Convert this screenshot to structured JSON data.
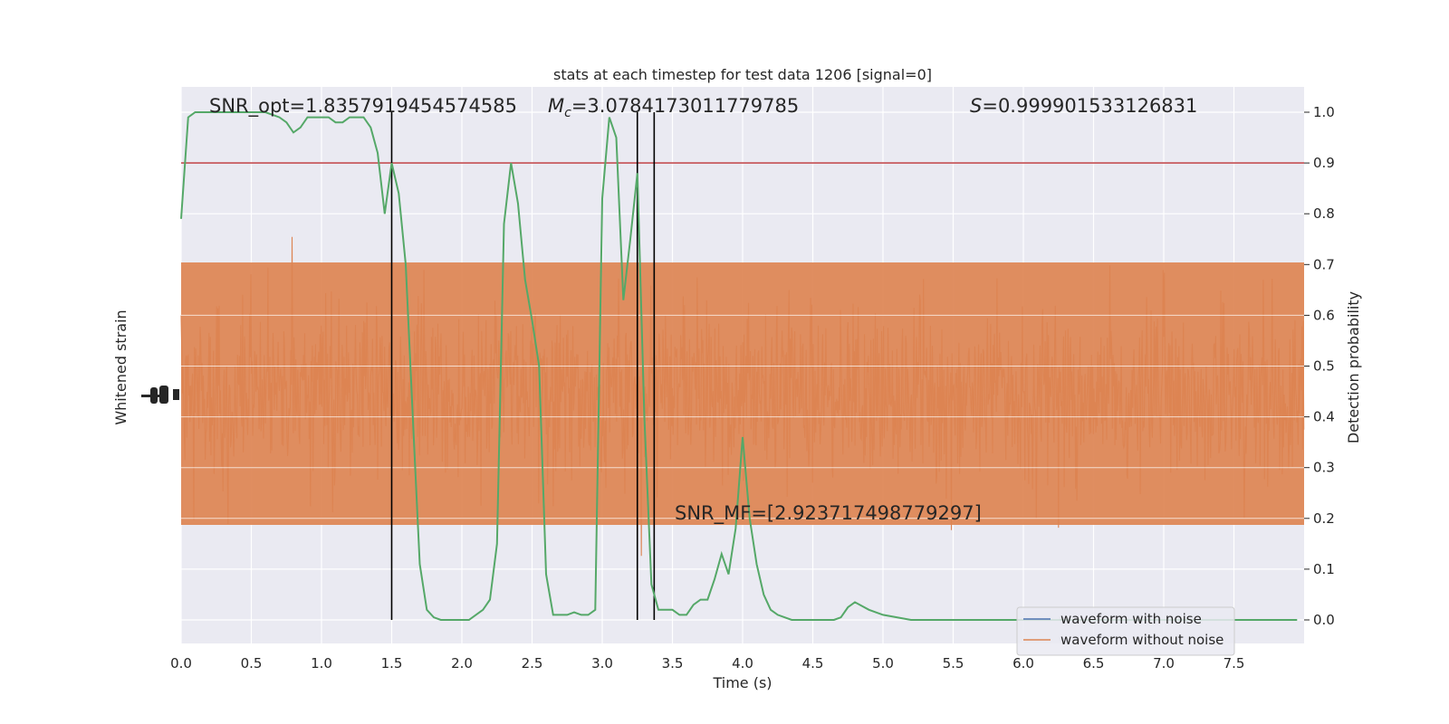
{
  "chart_data": {
    "type": "line",
    "title": "stats at each timestep for test data 1206 [signal=0]",
    "xlabel": "Time (s)",
    "ylabel_left": "Whitened strain",
    "ylabel_right": "Detection probability",
    "xlim": [
      0,
      8
    ],
    "ylim_right": [
      -0.05,
      1.05
    ],
    "x_ticks": [
      "0.0",
      "0.5",
      "1.0",
      "1.5",
      "2.0",
      "2.5",
      "3.0",
      "3.5",
      "4.0",
      "4.5",
      "5.0",
      "5.5",
      "6.0",
      "6.5",
      "7.0",
      "7.5"
    ],
    "y_ticks_right": [
      "0.0",
      "0.1",
      "0.2",
      "0.3",
      "0.4",
      "0.5",
      "0.6",
      "0.7",
      "0.8",
      "0.9",
      "1.0"
    ],
    "grid": true,
    "legend_placement": "lower-right",
    "annotations": {
      "snr_opt": "SNR_opt=1.8357919454574585",
      "mc_symbol": "M",
      "mc_subscript": "c",
      "mc_value": "=3.0784173011779785",
      "s_symbol": "S",
      "s_value": "=0.999901533126831",
      "snr_mf": "SNR_MF=[2.923717498779297]"
    },
    "threshold": 0.9,
    "vertical_lines": [
      1.5,
      3.25,
      3.37
    ],
    "series": [
      {
        "name": "waveform with noise",
        "color": "#4c72b0",
        "role": "strain"
      },
      {
        "name": "waveform without noise",
        "color": "#dd8452",
        "role": "strain"
      },
      {
        "color": "#55a868",
        "role": "detection_probability",
        "x": [
          0.0,
          0.05,
          0.1,
          0.2,
          0.3,
          0.4,
          0.5,
          0.6,
          0.7,
          0.75,
          0.8,
          0.85,
          0.9,
          0.95,
          1.0,
          1.05,
          1.1,
          1.15,
          1.2,
          1.25,
          1.3,
          1.35,
          1.4,
          1.45,
          1.5,
          1.55,
          1.6,
          1.65,
          1.7,
          1.75,
          1.8,
          1.85,
          1.9,
          1.95,
          2.0,
          2.05,
          2.1,
          2.15,
          2.2,
          2.25,
          2.3,
          2.35,
          2.4,
          2.45,
          2.5,
          2.55,
          2.6,
          2.65,
          2.7,
          2.75,
          2.8,
          2.85,
          2.9,
          2.95,
          3.0,
          3.05,
          3.1,
          3.15,
          3.2,
          3.25,
          3.3,
          3.35,
          3.4,
          3.45,
          3.5,
          3.55,
          3.6,
          3.65,
          3.7,
          3.75,
          3.8,
          3.85,
          3.9,
          3.95,
          4.0,
          4.05,
          4.1,
          4.15,
          4.2,
          4.25,
          4.3,
          4.35,
          4.4,
          4.45,
          4.5,
          4.55,
          4.6,
          4.65,
          4.7,
          4.75,
          4.8,
          4.9,
          5.0,
          5.2,
          5.5,
          5.8,
          5.9,
          6.0,
          6.05,
          6.1,
          6.2,
          6.3,
          6.4,
          6.5,
          6.7,
          6.9,
          7.1,
          7.3,
          7.5,
          7.6,
          7.7,
          7.8,
          7.9,
          7.95
        ],
        "y": [
          0.79,
          0.99,
          1.0,
          1.0,
          1.0,
          1.0,
          1.0,
          1.0,
          0.99,
          0.98,
          0.96,
          0.97,
          0.99,
          0.99,
          0.99,
          0.99,
          0.98,
          0.98,
          0.99,
          0.99,
          0.99,
          0.97,
          0.92,
          0.8,
          0.9,
          0.84,
          0.7,
          0.4,
          0.11,
          0.02,
          0.005,
          0.0,
          0.0,
          0.0,
          0.0,
          0.0,
          0.01,
          0.02,
          0.04,
          0.15,
          0.78,
          0.9,
          0.82,
          0.67,
          0.59,
          0.5,
          0.09,
          0.01,
          0.01,
          0.01,
          0.015,
          0.01,
          0.01,
          0.02,
          0.83,
          0.99,
          0.95,
          0.63,
          0.75,
          0.88,
          0.4,
          0.07,
          0.02,
          0.02,
          0.02,
          0.01,
          0.01,
          0.03,
          0.04,
          0.04,
          0.08,
          0.13,
          0.09,
          0.18,
          0.36,
          0.2,
          0.11,
          0.05,
          0.02,
          0.01,
          0.005,
          0.0,
          0.0,
          0.0,
          0.0,
          0.0,
          0.0,
          0.0,
          0.005,
          0.025,
          0.035,
          0.02,
          0.01,
          0.0,
          0.0,
          0.0,
          0.0,
          0.0,
          0.0,
          0.0,
          0.0,
          0.0,
          0.0,
          0.0,
          0.0,
          0.0,
          0.0,
          0.0,
          0.0,
          0.0,
          0.0,
          0.0,
          0.0,
          0.0
        ]
      }
    ]
  }
}
